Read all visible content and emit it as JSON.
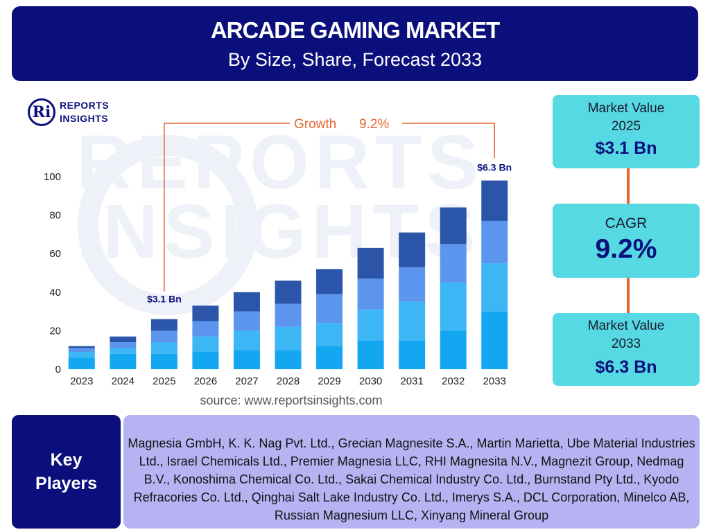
{
  "header": {
    "title": "ARCADE GAMING MARKET",
    "subtitle": "By Size, Share, Forecast 2033"
  },
  "logo": {
    "mark": "Ri",
    "line1": "REPORTS",
    "line2": "INSIGHTS"
  },
  "watermark": {
    "text": "REPORTS INSIGHTS"
  },
  "chart_data": {
    "type": "bar",
    "stacked": true,
    "categories": [
      "2023",
      "2024",
      "2025",
      "2026",
      "2027",
      "2028",
      "2029",
      "2030",
      "2031",
      "2032",
      "2033"
    ],
    "series": [
      {
        "values": [
          6,
          8,
          8,
          9,
          10,
          10,
          12,
          15,
          15,
          20,
          30
        ]
      },
      {
        "values": [
          3,
          3,
          6,
          8,
          10,
          12,
          12,
          16,
          20,
          25,
          25
        ]
      },
      {
        "values": [
          2,
          3,
          6,
          8,
          10,
          12,
          15,
          16,
          18,
          20,
          22
        ]
      },
      {
        "values": [
          1,
          3,
          6,
          8,
          10,
          12,
          13,
          16,
          18,
          19,
          21
        ]
      }
    ],
    "series_colors": [
      "#12a7f0",
      "#3cb6f5",
      "#5b95ee",
      "#2b55a8"
    ],
    "ylim": [
      0,
      100
    ],
    "yticks": [
      0,
      20,
      40,
      60,
      80,
      100
    ],
    "title": "",
    "xlabel": "",
    "ylabel": "",
    "grid": false,
    "annotations": {
      "growth_label": "Growth",
      "growth_value": "9.2%",
      "start_label": "$3.1 Bn",
      "start_category": "2025",
      "end_label": "$6.3 Bn",
      "end_category": "2033"
    },
    "accent_color": "#e8642f"
  },
  "source": "source: www.reportsinsights.com",
  "cards": {
    "market_value_2025": {
      "label_line1": "Market Value",
      "label_line2": "2025",
      "value": "$3.1 Bn"
    },
    "cagr": {
      "label": "CAGR",
      "value": "9.2%"
    },
    "market_value_2033": {
      "label_line1": "Market Value",
      "label_line2": "2033",
      "value": "$6.3 Bn"
    }
  },
  "key_players": {
    "label_line1": "Key",
    "label_line2": "Players",
    "text": "Magnesia GmbH, K. K. Nag Pvt. Ltd., Grecian Magnesite S.A., Martin Marietta, Ube Material Industries Ltd., Israel Chemicals Ltd., Premier Magnesia LLC, RHI Magnesita N.V., Magnezit Group, Nedmag B.V., Konoshima Chemical Co. Ltd., Sakai Chemical Industry Co. Ltd., Burnstand Pty Ltd., Kyodo Refracories Co. Ltd., Qinghai Salt Lake Industry Co. Ltd., Imerys S.A., DCL Corporation, Minelco AB, Russian Magnesium LLC, Xinyang Mineral Group"
  },
  "colors": {
    "navy": "#0b0f7c",
    "cyan_card": "#56d9e3",
    "lavender": "#b7b3f2",
    "orange": "#e8642f"
  }
}
